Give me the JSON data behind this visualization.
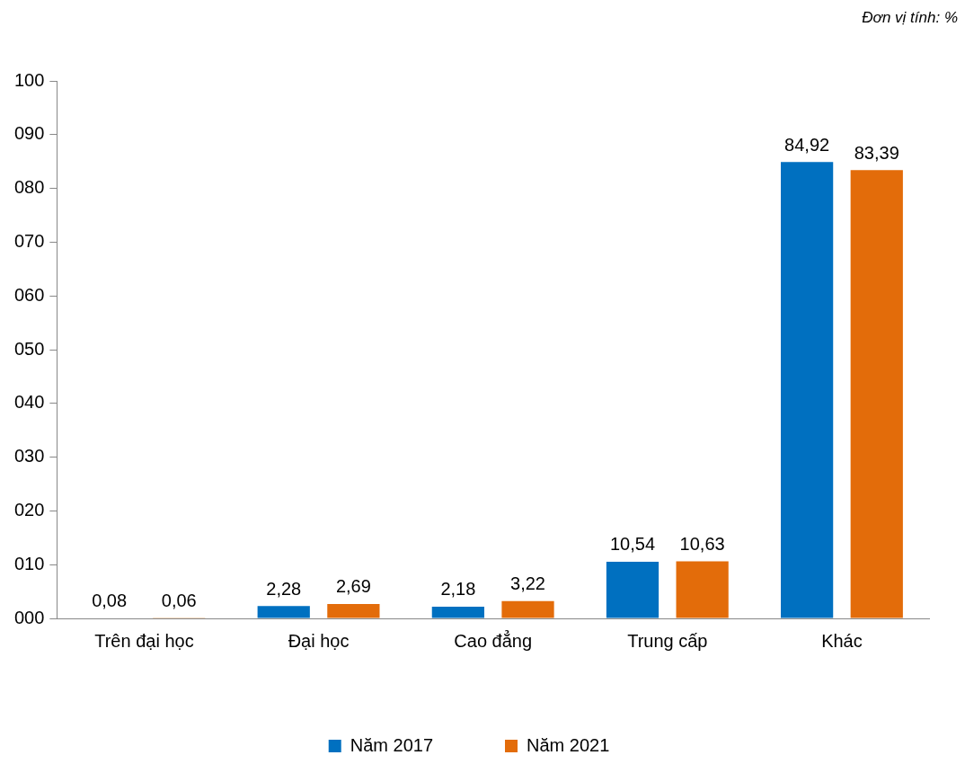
{
  "chart_data": {
    "type": "bar",
    "annotations": [
      "Đơn vị tính: %"
    ],
    "categories": [
      "Trên đại học",
      "Đại học",
      "Cao đẳng",
      "Trung cấp",
      "Khác"
    ],
    "series": [
      {
        "name": "Năm 2017",
        "color": "#0070c0",
        "values": [
          0.08,
          2.28,
          2.18,
          10.54,
          84.92
        ],
        "value_labels": [
          "0,08",
          "2,28",
          "2,18",
          "10,54",
          "84,92"
        ]
      },
      {
        "name": "Năm 2021",
        "color": "#e36c0a",
        "values": [
          0.06,
          2.69,
          3.22,
          10.63,
          83.39
        ],
        "value_labels": [
          "0,06",
          "2,69",
          "3,22",
          "10,63",
          "83,39"
        ]
      }
    ],
    "ylim": [
      0,
      100
    ],
    "yticks": [
      {
        "value": 0,
        "label": "000"
      },
      {
        "value": 10,
        "label": "010"
      },
      {
        "value": 20,
        "label": "020"
      },
      {
        "value": 30,
        "label": "030"
      },
      {
        "value": 40,
        "label": "040"
      },
      {
        "value": 50,
        "label": "050"
      },
      {
        "value": 60,
        "label": "060"
      },
      {
        "value": 70,
        "label": "070"
      },
      {
        "value": 80,
        "label": "080"
      },
      {
        "value": 90,
        "label": "090"
      },
      {
        "value": 100,
        "label": "100"
      }
    ],
    "grid": false,
    "legend": "bottom"
  }
}
